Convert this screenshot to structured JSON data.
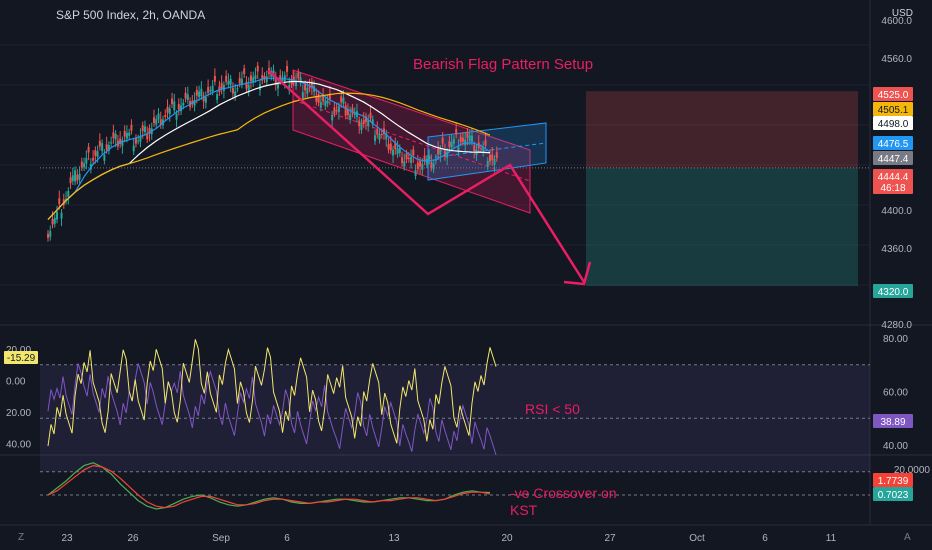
{
  "header": {
    "title": "S&P 500 Index, 2h, OANDA",
    "currency": "USD"
  },
  "annotations": {
    "pattern": "Bearish Flag Pattern Setup",
    "rsi": "RSI < 50",
    "kst_line1": "-ve Crossover on",
    "kst_line2": "KST"
  },
  "colors": {
    "background": "#131722",
    "text": "#b2b5be",
    "annotation": "#e91e63",
    "candle_up": "#26a69a",
    "candle_down": "#ef5350",
    "ma_blue": "#2196f3",
    "ma_white": "#ffffff",
    "ma_yellow": "#f5b50b",
    "rsi_purple": "#7e57c2",
    "rsi_yellow": "#f2e76b",
    "kst_green": "#4caf50",
    "kst_red": "#f44336"
  },
  "chart_data": [
    {
      "type": "candlestick",
      "pane": "price",
      "title": "S&P 500 Index, 2h, OANDA",
      "x_ticks": [
        "23",
        "26",
        "Sep",
        "6",
        "13",
        "20",
        "27",
        "Oct",
        "6",
        "11"
      ],
      "y_ticks": [
        4600.0,
        4560.0,
        4400.0,
        4360.0,
        4280.0
      ],
      "y_range": [
        4270,
        4610
      ],
      "price_labels": [
        {
          "value": "4525.0",
          "color": "#ef5350"
        },
        {
          "value": "4505.1",
          "color": "#f5b50b"
        },
        {
          "value": "4498.0",
          "color": "#ffffff"
        },
        {
          "value": "4476.5",
          "color": "#2196f3"
        },
        {
          "value": "4447.4",
          "color": "#787b86"
        },
        {
          "value": "4444.4",
          "color": "#ef5350"
        },
        {
          "value": "46:18",
          "color": "#ef5350"
        },
        {
          "value": "4320.0",
          "color": "#26a69a"
        }
      ],
      "trade_zone": {
        "stop": 4525.0,
        "entry": 4444.4,
        "target": 4320.0
      },
      "close_approx": [
        4390,
        4410,
        4430,
        4445,
        4455,
        4462,
        4470,
        4475,
        4478,
        4473,
        4480,
        4490,
        4500,
        4505,
        4510,
        4515,
        4520,
        4525,
        4530,
        4532,
        4528,
        4535,
        4538,
        4541,
        4540,
        4536,
        4538,
        4534,
        4530,
        4522,
        4512,
        4505,
        4510,
        4500,
        4495,
        4490,
        4480,
        4470,
        4460,
        4455,
        4450,
        4448,
        4452,
        4462,
        4470,
        4476,
        4472,
        4465,
        4458,
        4450
      ]
    },
    {
      "type": "line",
      "pane": "rsi",
      "y_ticks": [
        80.0,
        60.0,
        40.0
      ],
      "left_ticks": [
        "20.00",
        "0.00",
        "20.00",
        "40.00"
      ],
      "levels": [
        70,
        50,
        30
      ],
      "y_range": [
        25,
        85
      ],
      "value_labels": [
        {
          "value": "-15.29",
          "color": "#f2e76b"
        },
        {
          "value": "38.89",
          "color": "#7e57c2"
        }
      ],
      "series": [
        {
          "values": [
            58,
            62,
            55,
            66,
            61,
            54,
            63,
            57,
            52,
            60,
            66,
            58,
            53,
            61,
            64,
            55,
            50,
            58,
            62,
            53,
            48,
            56,
            61,
            51,
            46,
            53,
            58,
            49,
            44,
            52,
            57,
            47,
            44,
            51,
            56,
            47,
            42,
            49,
            54,
            45,
            42,
            48,
            53,
            44,
            40,
            47,
            52,
            45,
            42,
            39
          ]
        },
        {
          "values": [
            45,
            55,
            48,
            62,
            70,
            58,
            50,
            64,
            72,
            60,
            52,
            66,
            74,
            61,
            53,
            67,
            75,
            62,
            54,
            68,
            73,
            60,
            52,
            65,
            71,
            58,
            50,
            63,
            69,
            56,
            48,
            61,
            67,
            55,
            47,
            60,
            66,
            54,
            46,
            59,
            65,
            53,
            45,
            58,
            64,
            52,
            48,
            60,
            66,
            72
          ]
        }
      ]
    },
    {
      "type": "line",
      "pane": "kst",
      "y_ticks": [
        20.0
      ],
      "value_labels": [
        {
          "value": "1.7739",
          "color": "#f44336"
        },
        {
          "value": "0.7023",
          "color": "#26a69a"
        }
      ],
      "y_range": [
        -30,
        30
      ],
      "series": [
        {
          "values": [
            0,
            5,
            10,
            16,
            21,
            23,
            20,
            15,
            8,
            2,
            -4,
            -8,
            -10,
            -9,
            -6,
            -3,
            -1,
            0,
            -2,
            -5,
            -7,
            -8,
            -7,
            -5,
            -3,
            -2,
            -3,
            -5,
            -6,
            -6,
            -5,
            -4,
            -3,
            -3,
            -4,
            -5,
            -5,
            -4,
            -3,
            -2,
            -2,
            -3,
            -4,
            -4,
            -3,
            0,
            2,
            3,
            2,
            1.8
          ]
        },
        {
          "values": [
            0,
            3,
            8,
            13,
            18,
            21,
            20,
            17,
            12,
            6,
            0,
            -5,
            -8,
            -9,
            -8,
            -5,
            -3,
            -1,
            -1,
            -3,
            -5,
            -7,
            -7,
            -6,
            -4,
            -3,
            -3,
            -4,
            -5,
            -6,
            -5,
            -5,
            -4,
            -3,
            -3,
            -4,
            -5,
            -4,
            -4,
            -3,
            -2,
            -2,
            -3,
            -4,
            -3,
            -1,
            1,
            2,
            2,
            0.7
          ]
        }
      ]
    }
  ]
}
